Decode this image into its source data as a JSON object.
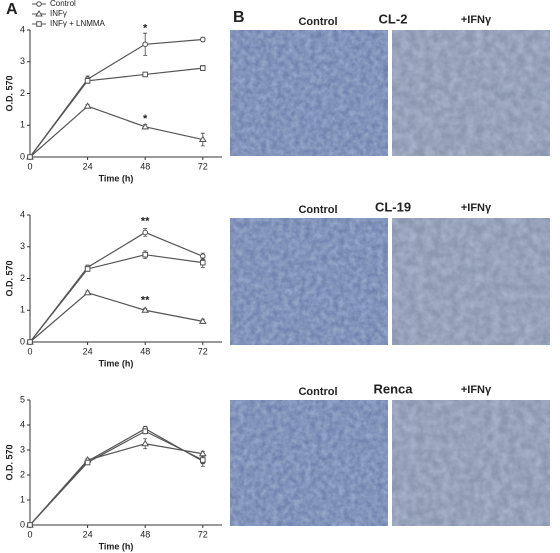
{
  "chart_data": [
    {
      "type": "line",
      "xlabel": "Time (h)",
      "ylabel": "O.D. 570",
      "x": [
        0,
        24,
        48,
        72
      ],
      "xlim": [
        0,
        80
      ],
      "xticks": [
        0,
        24,
        48,
        72
      ],
      "ylim": [
        0,
        4
      ],
      "yticks": [
        0,
        1,
        2,
        3,
        4
      ],
      "legend": "upper left",
      "series": [
        {
          "name": "Control",
          "color": "#555555",
          "marker": "circle",
          "values": [
            0,
            2.45,
            3.55,
            3.7
          ],
          "errors": [
            0,
            0.1,
            0.35,
            0.07
          ]
        },
        {
          "name": "INFγ",
          "color": "#555555",
          "marker": "triangle",
          "values": [
            0,
            1.6,
            0.95,
            0.55
          ],
          "errors": [
            0,
            0.05,
            0.07,
            0.2
          ]
        },
        {
          "name": "INFγ + LNMMA",
          "color": "#555555",
          "marker": "square",
          "values": [
            0,
            2.4,
            2.6,
            2.8
          ],
          "errors": [
            0,
            0.08,
            0.05,
            0.08
          ]
        }
      ],
      "annotations": [
        {
          "text": "*",
          "x": 48,
          "y": 4.05
        },
        {
          "text": "*",
          "x": 48,
          "y": 1.2
        }
      ]
    },
    {
      "type": "line",
      "xlabel": "Time (h)",
      "ylabel": "O.D. 570",
      "x": [
        0,
        24,
        48,
        72
      ],
      "xlim": [
        0,
        80
      ],
      "xticks": [
        0,
        24,
        48,
        72
      ],
      "ylim": [
        0,
        4
      ],
      "yticks": [
        0,
        1,
        2,
        3,
        4
      ],
      "series": [
        {
          "name": "Control",
          "color": "#555555",
          "marker": "circle",
          "values": [
            0,
            2.35,
            3.45,
            2.7
          ],
          "errors": [
            0,
            0.07,
            0.12,
            0.1
          ]
        },
        {
          "name": "INFγ",
          "color": "#555555",
          "marker": "triangle",
          "values": [
            0,
            1.55,
            1.0,
            0.65
          ],
          "errors": [
            0,
            0.05,
            0.06,
            0.07
          ]
        },
        {
          "name": "INFγ + LNMMA",
          "color": "#555555",
          "marker": "square",
          "values": [
            0,
            2.3,
            2.75,
            2.5
          ],
          "errors": [
            0,
            0.07,
            0.12,
            0.15
          ]
        }
      ],
      "annotations": [
        {
          "text": "**",
          "x": 48,
          "y": 3.8
        },
        {
          "text": "**",
          "x": 48,
          "y": 1.3
        }
      ]
    },
    {
      "type": "line",
      "xlabel": "Time (h)",
      "ylabel": "O.D. 570",
      "x": [
        0,
        24,
        48,
        72
      ],
      "xlim": [
        0,
        80
      ],
      "xticks": [
        0,
        24,
        48,
        72
      ],
      "ylim": [
        0,
        5
      ],
      "yticks": [
        0,
        1,
        2,
        3,
        4,
        5
      ],
      "series": [
        {
          "name": "Control",
          "color": "#555555",
          "marker": "circle",
          "values": [
            0,
            2.55,
            3.85,
            2.55
          ],
          "errors": [
            0,
            0.07,
            0.1,
            0.2
          ]
        },
        {
          "name": "INFγ",
          "color": "#555555",
          "marker": "triangle",
          "values": [
            0,
            2.6,
            3.25,
            2.85
          ],
          "errors": [
            0,
            0.07,
            0.2,
            0.1
          ]
        },
        {
          "name": "INFγ + LNMMA",
          "color": "#555555",
          "marker": "square",
          "values": [
            0,
            2.5,
            3.75,
            2.6
          ],
          "errors": [
            0,
            0.07,
            0.1,
            0.15
          ]
        }
      ],
      "annotations": []
    }
  ],
  "figure": {
    "panel_a": "A",
    "panel_b": "B",
    "micrographs": [
      {
        "left": "Control",
        "cell_line": "CL-2",
        "right": "+IFNγ"
      },
      {
        "left": "Control",
        "cell_line": "CL-19",
        "right": "+IFNγ"
      },
      {
        "left": "Control",
        "cell_line": "Renca",
        "right": "+IFNγ"
      }
    ]
  }
}
